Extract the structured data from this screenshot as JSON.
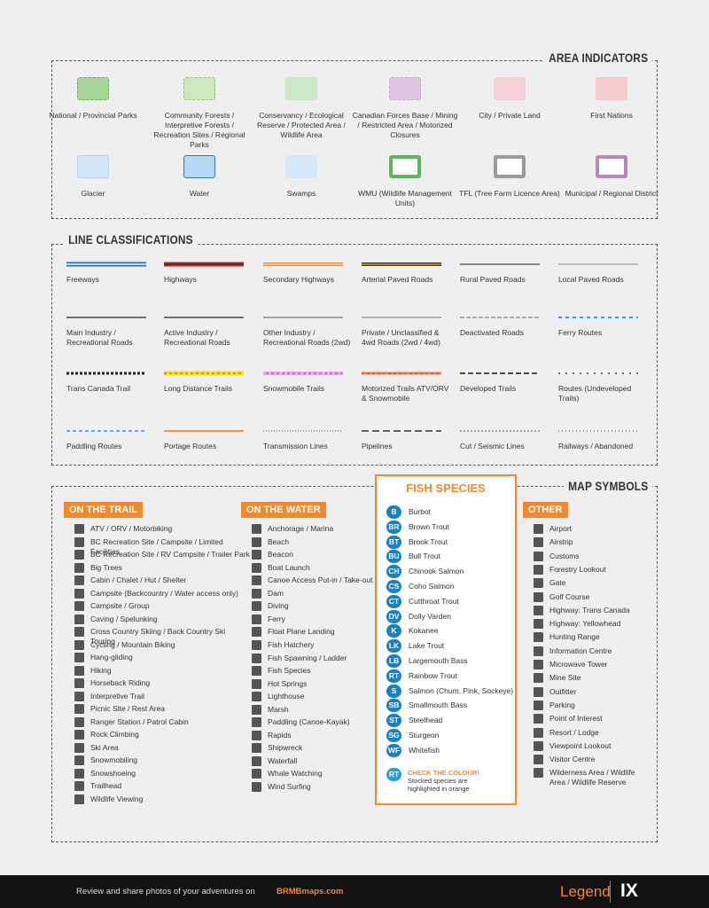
{
  "area_indicators": {
    "title": "AREA INDICATORS",
    "items": [
      "National / Provincial Parks",
      "Community Forests / Interpretive Forests / Recreation Sites / Regional Parks",
      "Conservancy / Ecological Reserve / Protected Area / Wildlife Area",
      "Canadian Forces Base / Mining / Restricted Area / Motorized Closures",
      "City / Private Land",
      "First Nations",
      "Glacier",
      "Water",
      "Swamps",
      "WMU (Wildlife Management Units)",
      "TFL (Tree Farm Licence Area)",
      "Municipal / Regional District"
    ]
  },
  "line_classifications": {
    "title": "LINE CLASSIFICATIONS",
    "items": [
      "Freeways",
      "Highways",
      "Secondary Highways",
      "Arterial Paved Roads",
      "Rural Paved Roads",
      "Local Paved Roads",
      "Main Industry / Recreational Roads",
      "Active Industry / Recreational Roads",
      "Other Industry / Recreational Roads (2wd)",
      "Private / Unclassified & 4wd Roads (2wd / 4wd)",
      "Deactivated Roads",
      "Ferry Routes",
      "Trans Canada Trail",
      "Long Distance Trails",
      "Snowmobile Trails",
      "Motorized Trails ATV/ORV & Snowmobile",
      "Developed Trails",
      "Routes (Undeveloped Trails)",
      "Paddling Routes",
      "Portage Routes",
      "Transmission Lines",
      "Pipelines",
      "Cut / Seismic Lines",
      "Railways / Abandoned"
    ]
  },
  "map_symbols": {
    "title": "MAP SYMBOLS",
    "on_the_trail": {
      "title": "ON THE TRAIL",
      "items": [
        "ATV / ORV / Motorbiking",
        "BC Recreation Site / Campsite / Limited Facilities",
        "BC Recreation Site / RV Campsite / Trailer Park",
        "Big Trees",
        "Cabin / Chalet / Hut / Shelter",
        "Campsite (Backcountry / Water access only)",
        "Campsite / Group",
        "Caving / Spelunking",
        "Cross Country Skiing / Back Country Ski Touring",
        "Cycling / Mountain Biking",
        "Hang-gliding",
        "Hiking",
        "Horseback Riding",
        "Interpretive Trail",
        "Picnic Site / Rest Area",
        "Ranger Station / Patrol Cabin",
        "Rock Climbing",
        "Ski Area",
        "Snowmobiling",
        "Snowshoeing",
        "Trailhead",
        "Wildlife Viewing"
      ]
    },
    "on_the_water": {
      "title": "ON THE WATER",
      "items": [
        "Anchorage / Marina",
        "Beach",
        "Beacon",
        "Boat Launch",
        "Canoe Access Put-in / Take-out",
        "Dam",
        "Diving",
        "Ferry",
        "Float Plane Landing",
        "Fish Hatchery",
        "Fish Spawning / Ladder",
        "Fish Species",
        "Hot Springs",
        "Lighthouse",
        "Marsh",
        "Paddling (Canoe-Kayak)",
        "Rapids",
        "Shipwreck",
        "Waterfall",
        "Whale Watching",
        "Wind Surfing"
      ]
    },
    "fish_species": {
      "title": "FISH SPECIES",
      "items": [
        {
          "code": "B",
          "name": "Burbot"
        },
        {
          "code": "BR",
          "name": "Brown Trout"
        },
        {
          "code": "BT",
          "name": "Brook Trout"
        },
        {
          "code": "BU",
          "name": "Bull Trout"
        },
        {
          "code": "CH",
          "name": "Chinook Salmon"
        },
        {
          "code": "CS",
          "name": "Coho Salmon"
        },
        {
          "code": "CT",
          "name": "Cutthroat Trout"
        },
        {
          "code": "DV",
          "name": "Dolly Varden"
        },
        {
          "code": "K",
          "name": "Kokanee"
        },
        {
          "code": "LK",
          "name": "Lake Trout"
        },
        {
          "code": "LB",
          "name": "Largemouth Bass"
        },
        {
          "code": "RT",
          "name": "Rainbow Trout"
        },
        {
          "code": "S",
          "name": "Salmon (Chum, Pink, Sockeye)"
        },
        {
          "code": "SB",
          "name": "Smallmouth Bass"
        },
        {
          "code": "ST",
          "name": "Steelhead"
        },
        {
          "code": "SG",
          "name": "Sturgeon"
        },
        {
          "code": "WF",
          "name": "Whitefish"
        }
      ],
      "note_code": "RT",
      "note_title": "CHECK THE COLOUR!",
      "note_text": "Stocked species are highlighted in orange"
    },
    "other": {
      "title": "OTHER",
      "items": [
        "Airport",
        "Airstrip",
        "Customs",
        "Forestry Lookout",
        "Gate",
        "Golf Course",
        "Highway: Trans Canada",
        "Highway: Yellowhead",
        "Hunting Range",
        "Information Centre",
        "Microwave Tower",
        "Mine Site",
        "Outfitter",
        "Parking",
        "Point of Interest",
        "Resort / Lodge",
        "Viewpoint Lookout",
        "Visitor Centre",
        "Wilderness Area / Wildlife Area / Wildlife Reserve"
      ]
    }
  },
  "footer": {
    "text": "Review and share photos of your adventures on",
    "link": "BRMBmaps.com",
    "legend": "Legend",
    "page": "IX"
  }
}
